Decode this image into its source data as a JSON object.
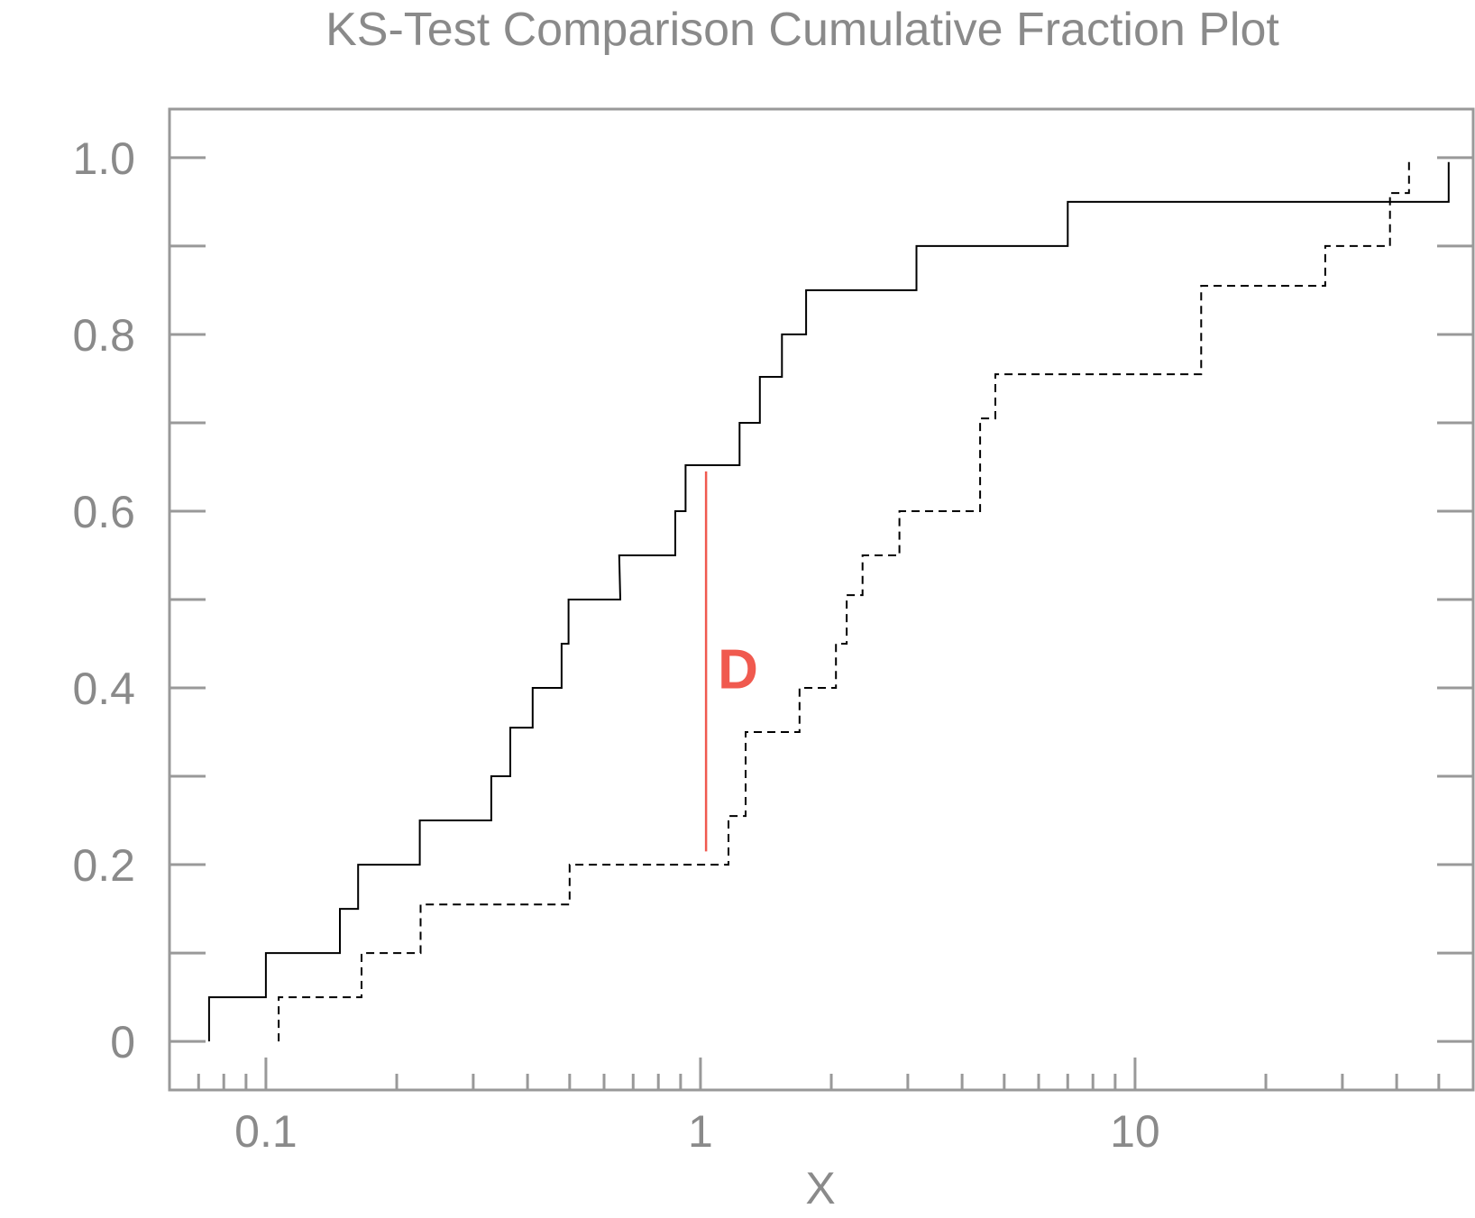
{
  "chart_data": {
    "type": "line",
    "title": "KS-Test Comparison Cumulative Fraction Plot",
    "xlabel": "X",
    "ylabel": "",
    "xscale": "log",
    "xlim": [
      0.06,
      60
    ],
    "ylim": [
      -0.055,
      1.055
    ],
    "grid": false,
    "x_tick_labels": [
      {
        "value": 0.1,
        "label": "0.1"
      },
      {
        "value": 1,
        "label": "1"
      },
      {
        "value": 10,
        "label": "10"
      }
    ],
    "y_tick_labels": [
      {
        "value": 0,
        "label": "0"
      },
      {
        "value": 0.2,
        "label": "0.2"
      },
      {
        "value": 0.4,
        "label": "0.4"
      },
      {
        "value": 0.6,
        "label": "0.6"
      },
      {
        "value": 0.8,
        "label": "0.8"
      },
      {
        "value": 1.0,
        "label": "1.0"
      }
    ],
    "y_minor_ticks": [
      0.1,
      0.3,
      0.5,
      0.7,
      0.9
    ],
    "series": [
      {
        "style": "solid",
        "color": "#000000",
        "points": [
          [
            0.074,
            0.0
          ],
          [
            0.074,
            0.05
          ],
          [
            0.1,
            0.05
          ],
          [
            0.1,
            0.1
          ],
          [
            0.148,
            0.1
          ],
          [
            0.148,
            0.15
          ],
          [
            0.163,
            0.15
          ],
          [
            0.163,
            0.2
          ],
          [
            0.226,
            0.2
          ],
          [
            0.226,
            0.25
          ],
          [
            0.33,
            0.25
          ],
          [
            0.33,
            0.3
          ],
          [
            0.365,
            0.3
          ],
          [
            0.365,
            0.355
          ],
          [
            0.411,
            0.355
          ],
          [
            0.411,
            0.4
          ],
          [
            0.479,
            0.4
          ],
          [
            0.479,
            0.45
          ],
          [
            0.497,
            0.45
          ],
          [
            0.497,
            0.5
          ],
          [
            0.654,
            0.5
          ],
          [
            0.65,
            0.55
          ],
          [
            0.875,
            0.55
          ],
          [
            0.875,
            0.6
          ],
          [
            0.924,
            0.6
          ],
          [
            0.924,
            0.652
          ],
          [
            1.23,
            0.652
          ],
          [
            1.23,
            0.7
          ],
          [
            1.37,
            0.7
          ],
          [
            1.37,
            0.752
          ],
          [
            1.54,
            0.752
          ],
          [
            1.54,
            0.8
          ],
          [
            1.75,
            0.8
          ],
          [
            1.75,
            0.85
          ],
          [
            3.14,
            0.85
          ],
          [
            3.14,
            0.9
          ],
          [
            7.0,
            0.9
          ],
          [
            7.0,
            0.95
          ],
          [
            52.7,
            0.95
          ],
          [
            52.7,
            0.995
          ]
        ]
      },
      {
        "style": "dashed",
        "color": "#000000",
        "points": [
          [
            0.107,
            0.0
          ],
          [
            0.107,
            0.05
          ],
          [
            0.166,
            0.05
          ],
          [
            0.166,
            0.1
          ],
          [
            0.227,
            0.1
          ],
          [
            0.227,
            0.155
          ],
          [
            0.5,
            0.155
          ],
          [
            0.5,
            0.2
          ],
          [
            1.16,
            0.2
          ],
          [
            1.16,
            0.255
          ],
          [
            1.27,
            0.255
          ],
          [
            1.27,
            0.35
          ],
          [
            1.69,
            0.35
          ],
          [
            1.69,
            0.4
          ],
          [
            2.05,
            0.4
          ],
          [
            2.05,
            0.45
          ],
          [
            2.17,
            0.45
          ],
          [
            2.17,
            0.505
          ],
          [
            2.36,
            0.505
          ],
          [
            2.36,
            0.55
          ],
          [
            2.87,
            0.55
          ],
          [
            2.87,
            0.6
          ],
          [
            4.4,
            0.6
          ],
          [
            4.4,
            0.705
          ],
          [
            4.77,
            0.705
          ],
          [
            4.77,
            0.755
          ],
          [
            14.2,
            0.755
          ],
          [
            14.2,
            0.855
          ],
          [
            27.4,
            0.855
          ],
          [
            27.4,
            0.9
          ],
          [
            38.6,
            0.9
          ],
          [
            38.6,
            0.96
          ],
          [
            42.7,
            0.96
          ],
          [
            42.7,
            1.0
          ]
        ]
      }
    ],
    "annotations": [
      {
        "type": "vline",
        "x": 1.03,
        "y0": 0.215,
        "y1": 0.645,
        "color": "#f05a4f"
      },
      {
        "type": "text",
        "text": "D",
        "x": 1.22,
        "y": 0.42,
        "color": "#f05a4f"
      }
    ]
  }
}
